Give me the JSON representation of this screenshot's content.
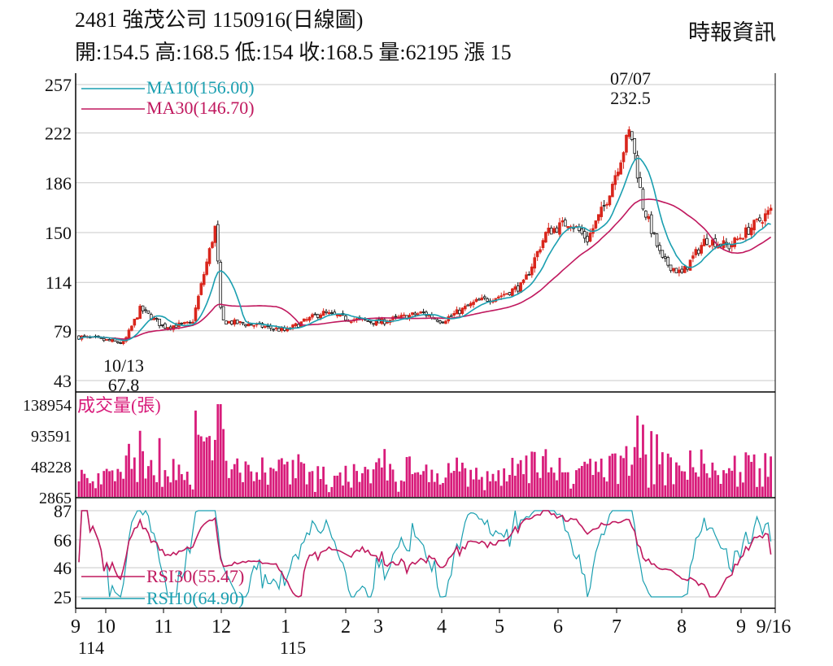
{
  "header": {
    "title": "2481  強茂公司 1150916(日線圖)",
    "quote": "開:154.5 高:168.5 低:154 收:168.5 量:62195 漲 15",
    "source": "時報資訊"
  },
  "colors": {
    "up": "#d9261c",
    "down": "#111111",
    "ma10": "#1a9fb0",
    "ma30": "#c0185e",
    "volume": "#d81b7a",
    "grid": "#c8c8c8"
  },
  "chart_data": [
    {
      "type": "candlestick",
      "title": "",
      "ylim": [
        43,
        257
      ],
      "y_ticks": [
        "257",
        "222",
        "186",
        "150",
        "114",
        "79",
        "43"
      ],
      "legend": [
        {
          "name": "MA10",
          "label": "MA10(156.00)",
          "color": "ma10"
        },
        {
          "name": "MA30",
          "label": "MA30(146.70)",
          "color": "ma30"
        }
      ],
      "annotations": [
        {
          "date": "07/07",
          "value": "232.5",
          "kind": "high"
        },
        {
          "date": "10/13",
          "value": "67.8",
          "kind": "low"
        }
      ],
      "price_path": [
        [
          "9",
          75
        ],
        [
          "10",
          72
        ],
        [
          "10/13",
          70
        ],
        [
          "10.6",
          95
        ],
        [
          "11",
          82
        ],
        [
          "11.5",
          84
        ],
        [
          "12",
          86
        ],
        [
          "12.6",
          83
        ],
        [
          "1",
          79
        ],
        [
          "1.6",
          92
        ],
        [
          "2",
          88
        ],
        [
          "3",
          85
        ],
        [
          "3.7",
          92
        ],
        [
          "4",
          86
        ],
        [
          "4.6",
          100
        ],
        [
          "5",
          104
        ],
        [
          "5.4",
          112
        ],
        [
          "5.8",
          150
        ],
        [
          "6.2",
          158
        ],
        [
          "6.5",
          145
        ],
        [
          "6.8",
          170
        ],
        [
          "07/07",
          225
        ],
        [
          "7.4",
          170
        ],
        [
          "7.7",
          130
        ],
        [
          "8",
          120
        ],
        [
          "8.4",
          145
        ],
        [
          "8.8",
          140
        ],
        [
          "9.2",
          155
        ],
        [
          "9/16",
          168.5
        ]
      ],
      "ma10_last": 156.0,
      "ma30_last": 146.7
    },
    {
      "type": "bar",
      "title": "成交量(張)",
      "ylim": [
        2865,
        138954
      ],
      "y_ticks": [
        "138954",
        "93591",
        "48228",
        "2865"
      ],
      "last_value": 62195
    },
    {
      "type": "line",
      "ylim": [
        25,
        87
      ],
      "y_ticks": [
        "87",
        "66",
        "46",
        "25"
      ],
      "series": [
        {
          "name": "RSI30",
          "label": "RSI30(55.47)",
          "color": "ma30",
          "last": 55.47
        },
        {
          "name": "RSI10",
          "label": "RSI10(64.90)",
          "color": "ma10",
          "last": 64.9
        }
      ]
    }
  ],
  "x_axis": {
    "ticks": [
      "9",
      "10",
      "11",
      "12",
      "1",
      "2",
      "3",
      "4",
      "5",
      "6",
      "7",
      "8",
      "9",
      "9/16"
    ],
    "years": [
      "114",
      "115"
    ]
  }
}
